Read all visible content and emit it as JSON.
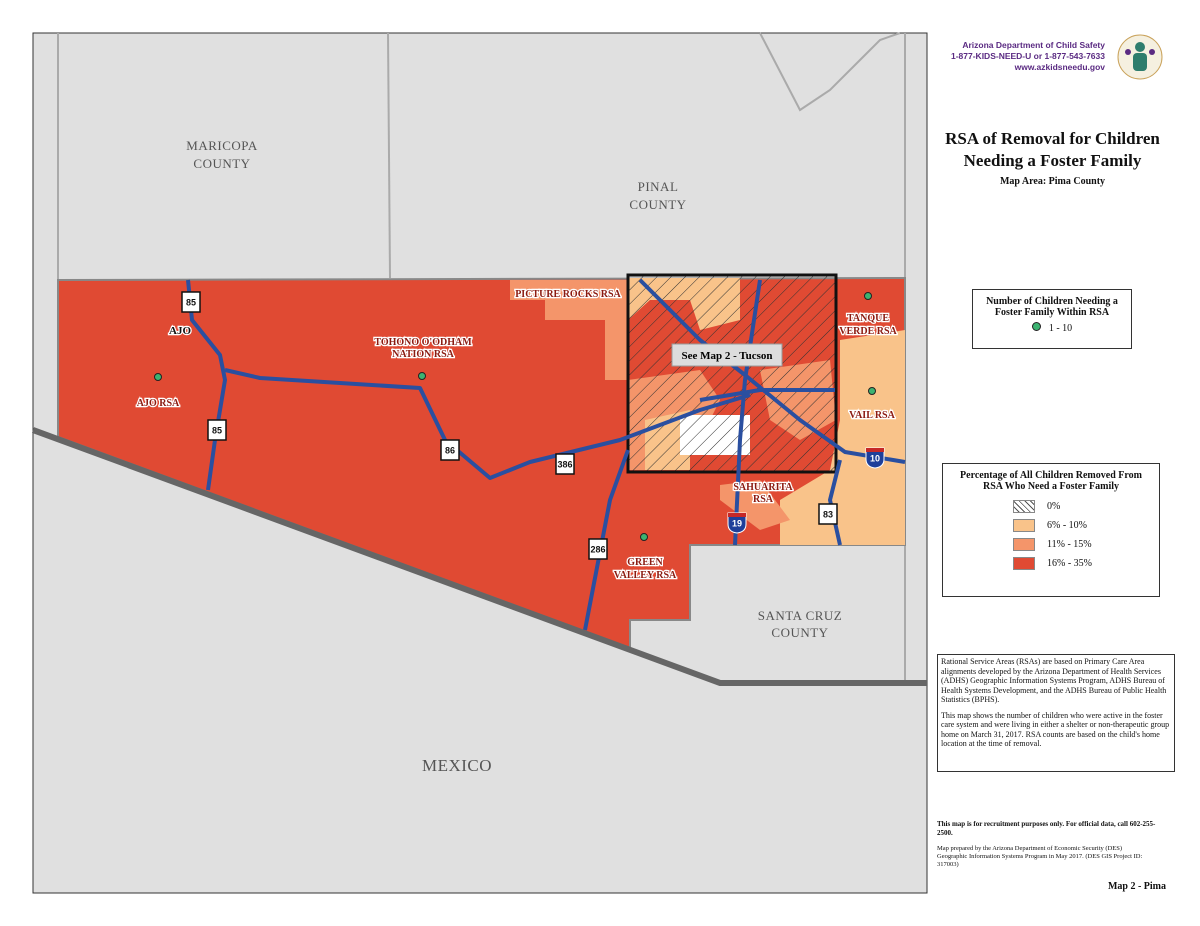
{
  "header": {
    "agency": "Arizona Department of Child Safety",
    "phone": "1-877-KIDS-NEED-U or 1-877-543-7633",
    "website": "www.azkidsneedu.gov"
  },
  "title": "RSA of Removal for Children Needing a Foster Family",
  "subtitle": "Map Area: Pima County",
  "legend_count": {
    "title": "Number of Children Needing a Foster Family Within RSA",
    "items": [
      "1 - 10"
    ]
  },
  "legend_percent": {
    "title": "Percentage of All Children Removed From RSA Who Need a Foster Family",
    "items": [
      "0%",
      "6% - 10%",
      "11% - 15%",
      "16% - 35%"
    ]
  },
  "notes": [
    "Rational Service Areas (RSAs) are based on Primary Care Area alignments developed by the Arizona Department of Health Services (ADHS) Geographic Information Systems Program, ADHS Bureau of Health Systems Development, and the ADHS Bureau of Public Health Statistics (BPHS).",
    "This map shows the number of children who were active in the foster care system and were living in either a shelter or non-therapeutic group home on March 31, 2017.  RSA counts are based on the child's home location at the time of removal."
  ],
  "disclaimer": "This map is for recruitment purposes only.  For official data, call 602-255-2500.",
  "credits": "Map prepared by the Arizona Department of Economic Security (DES) Geographic Information Systems Program in May 2017. (DES GIS Project ID: 317003)",
  "map_id": "Map 2 - Pima",
  "map": {
    "counties": [
      [
        "MARICOPA",
        "COUNTY"
      ],
      [
        "PINAL",
        "COUNTY"
      ],
      [
        "SANTA  CRUZ",
        "COUNTY"
      ]
    ],
    "country": "MEXICO",
    "town": "AJO",
    "rsas": [
      [
        "AJO RSA"
      ],
      [
        "TOHONO O'ODHAM",
        "NATION RSA"
      ],
      [
        "PICTURE ROCKS RSA"
      ],
      [
        "TANQUE",
        "VERDE RSA"
      ],
      [
        "VAIL RSA"
      ],
      [
        "SAHUARITA",
        "RSA"
      ],
      [
        "GREEN",
        "VALLEY RSA"
      ]
    ],
    "inset_label": "See Map 2 - Tucson",
    "highways": [
      "85",
      "85",
      "86",
      "386",
      "286",
      "19",
      "10",
      "83"
    ]
  }
}
